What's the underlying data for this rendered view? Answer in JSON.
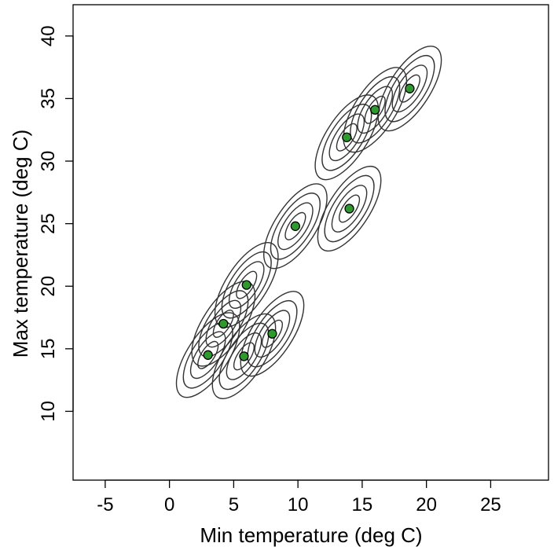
{
  "chart_data": {
    "type": "scatter",
    "xlabel": "Min temperature (deg C)",
    "ylabel": "Max temperature (deg C)",
    "xlim": [
      -7.5,
      29.5
    ],
    "ylim": [
      4.5,
      42.5
    ],
    "xticks": [
      -5,
      0,
      5,
      10,
      15,
      20,
      25
    ],
    "yticks": [
      10,
      15,
      20,
      25,
      30,
      35,
      40
    ],
    "grid": false,
    "point_color": "#2e9a2e",
    "contour_color": "#333333",
    "contour_levels": 4,
    "points": [
      {
        "x": 3.0,
        "y": 14.5
      },
      {
        "x": 4.2,
        "y": 17.0
      },
      {
        "x": 6.0,
        "y": 20.1
      },
      {
        "x": 5.8,
        "y": 14.4
      },
      {
        "x": 8.0,
        "y": 16.2
      },
      {
        "x": 9.8,
        "y": 24.8
      },
      {
        "x": 14.0,
        "y": 26.2
      },
      {
        "x": 13.8,
        "y": 31.9
      },
      {
        "x": 16.0,
        "y": 34.1
      },
      {
        "x": 18.7,
        "y": 35.8
      }
    ]
  }
}
